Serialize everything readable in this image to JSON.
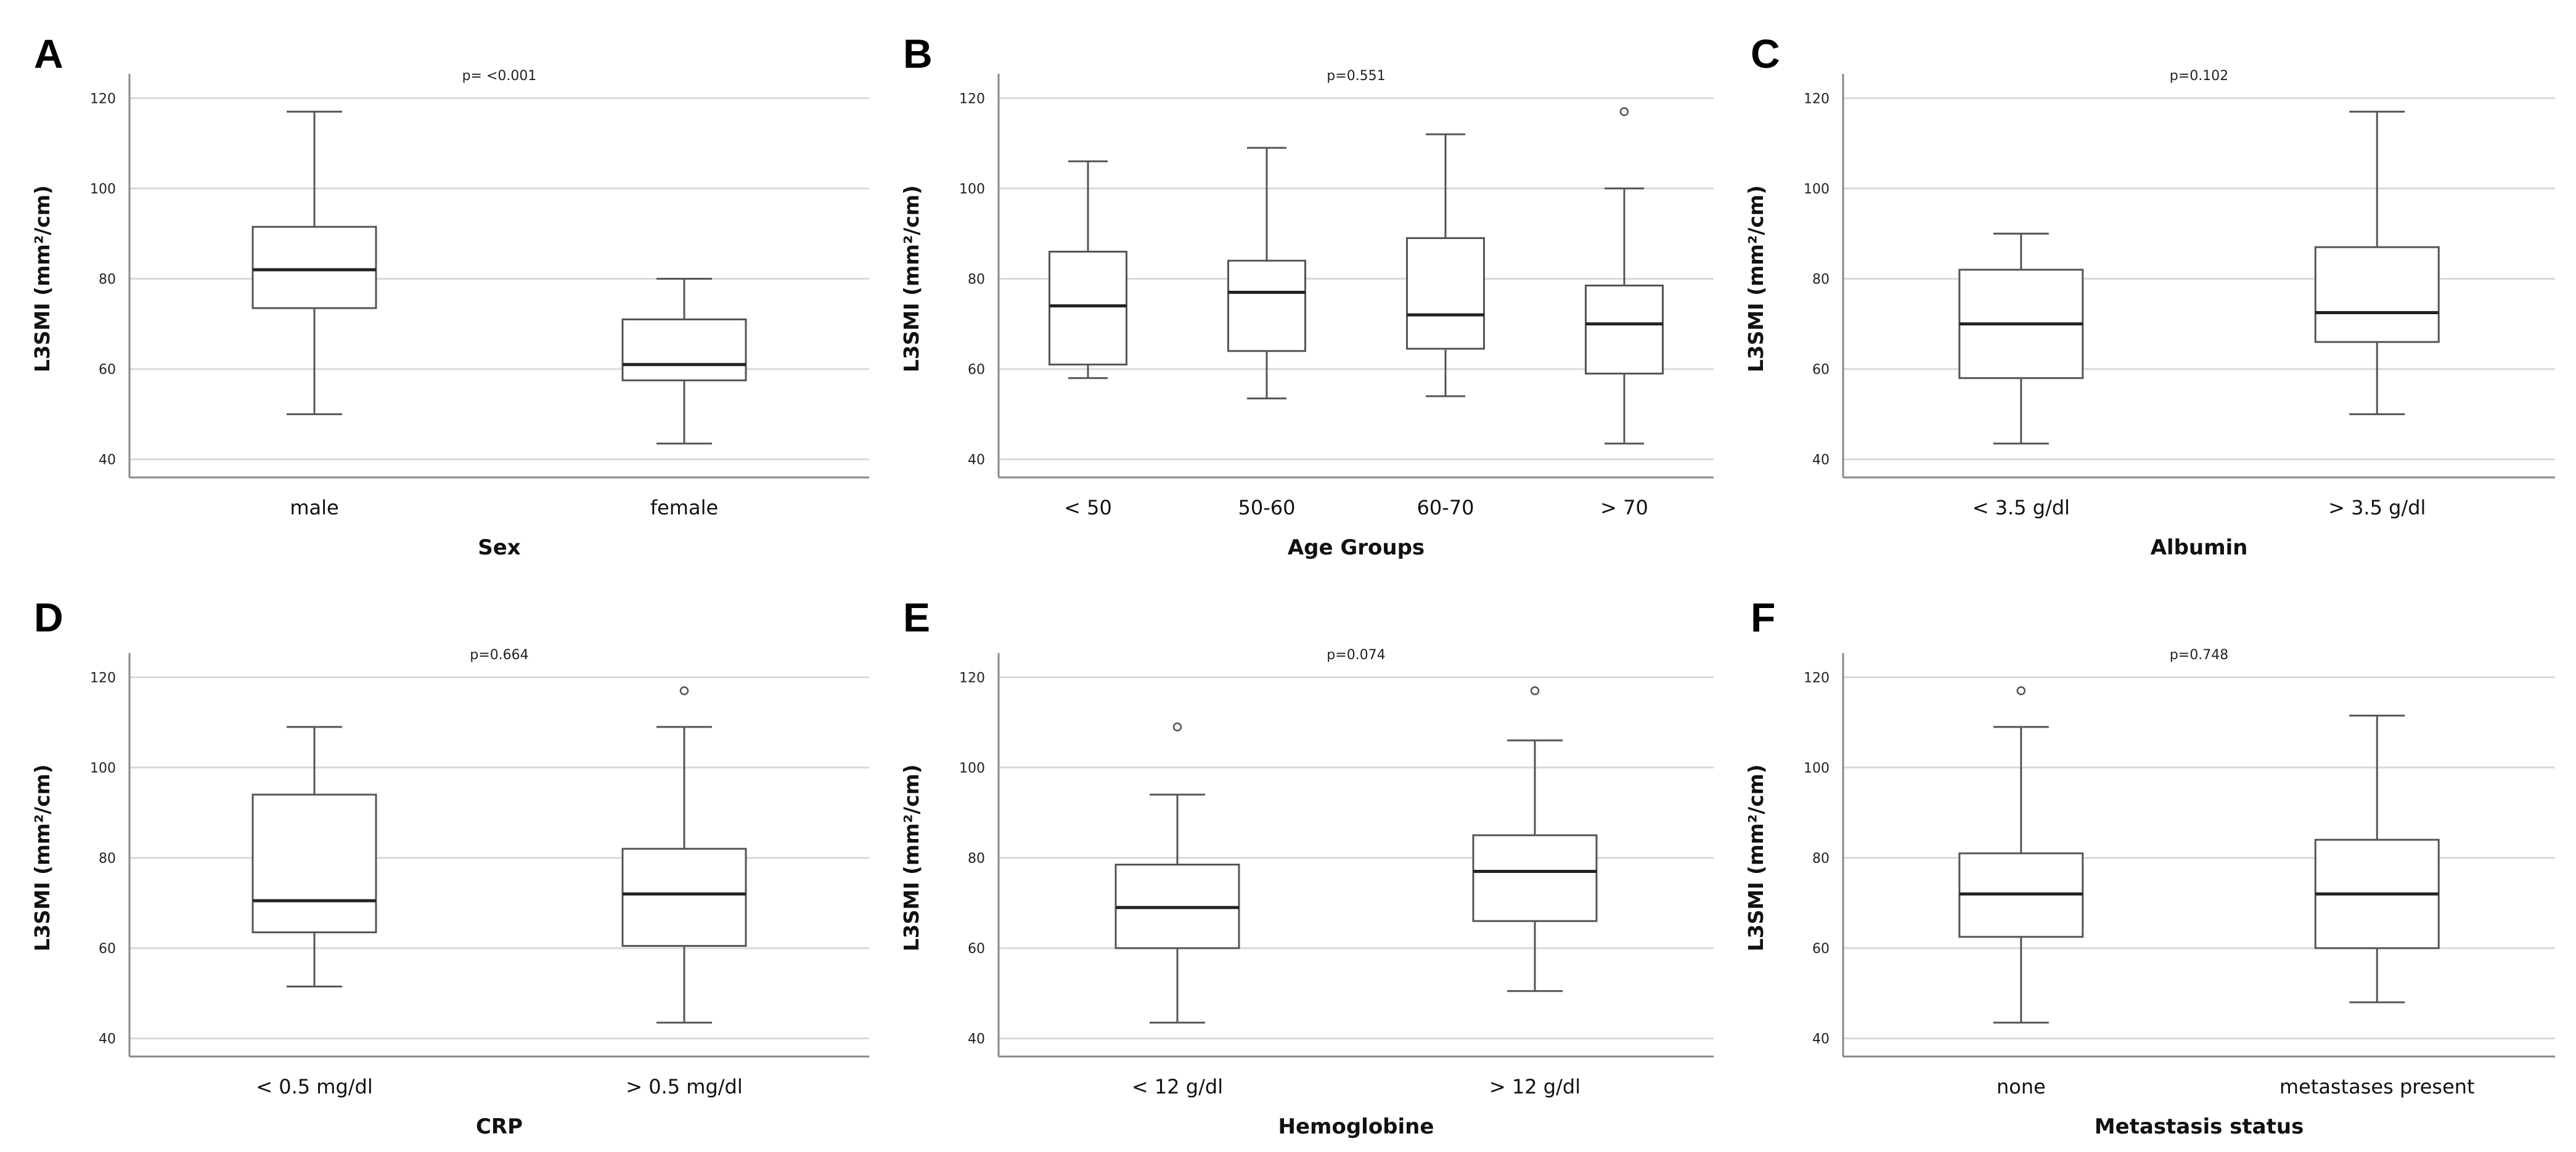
{
  "chart_data": [
    {
      "panel": "A",
      "type": "box",
      "pvalue": "p= <0.001",
      "xlabel": "Sex",
      "ylabel": "L3SMI (mm²/cm)",
      "ylim": [
        36,
        124
      ],
      "yticks": [
        40,
        60,
        80,
        100,
        120
      ],
      "categories": [
        "male",
        "female"
      ],
      "boxes": [
        {
          "min": 50,
          "q1": 73.5,
          "median": 82,
          "q3": 91.5,
          "max": 117,
          "outliers": []
        },
        {
          "min": 43.5,
          "q1": 57.5,
          "median": 61,
          "q3": 71,
          "max": 80,
          "outliers": []
        }
      ]
    },
    {
      "panel": "B",
      "type": "box",
      "pvalue": "p=0.551",
      "xlabel": "Age Groups",
      "ylabel": "L3SMI (mm²/cm)",
      "ylim": [
        36,
        124
      ],
      "yticks": [
        40,
        60,
        80,
        100,
        120
      ],
      "categories": [
        "< 50",
        "50-60",
        "60-70",
        "> 70"
      ],
      "boxes": [
        {
          "min": 58,
          "q1": 61,
          "median": 74,
          "q3": 86,
          "max": 106,
          "outliers": []
        },
        {
          "min": 53.5,
          "q1": 64,
          "median": 77,
          "q3": 84,
          "max": 109,
          "outliers": []
        },
        {
          "min": 54,
          "q1": 64.5,
          "median": 72,
          "q3": 89,
          "max": 112,
          "outliers": []
        },
        {
          "min": 43.5,
          "q1": 59,
          "median": 70,
          "q3": 78.5,
          "max": 100,
          "outliers": [
            117
          ]
        }
      ]
    },
    {
      "panel": "C",
      "type": "box",
      "pvalue": "p=0.102",
      "xlabel": "Albumin",
      "ylabel": "L3SMI (mm²/cm)",
      "ylim": [
        36,
        124
      ],
      "yticks": [
        40,
        60,
        80,
        100,
        120
      ],
      "categories": [
        "< 3.5 g/dl",
        "> 3.5 g/dl"
      ],
      "boxes": [
        {
          "min": 43.5,
          "q1": 58,
          "median": 70,
          "q3": 82,
          "max": 90,
          "outliers": []
        },
        {
          "min": 50,
          "q1": 66,
          "median": 72.5,
          "q3": 87,
          "max": 117,
          "outliers": []
        }
      ]
    },
    {
      "panel": "D",
      "type": "box",
      "pvalue": "p=0.664",
      "xlabel": "CRP",
      "ylabel": "L3SMI (mm²/cm)",
      "ylim": [
        36,
        124
      ],
      "yticks": [
        40,
        60,
        80,
        100,
        120
      ],
      "categories": [
        "< 0.5 mg/dl",
        "> 0.5 mg/dl"
      ],
      "boxes": [
        {
          "min": 51.5,
          "q1": 63.5,
          "median": 70.5,
          "q3": 94,
          "max": 109,
          "outliers": []
        },
        {
          "min": 43.5,
          "q1": 60.5,
          "median": 72,
          "q3": 82,
          "max": 109,
          "outliers": [
            117
          ]
        }
      ]
    },
    {
      "panel": "E",
      "type": "box",
      "pvalue": "p=0.074",
      "xlabel": "Hemoglobine",
      "ylabel": "L3SMI (mm²/cm)",
      "ylim": [
        36,
        124
      ],
      "yticks": [
        40,
        60,
        80,
        100,
        120
      ],
      "categories": [
        "< 12 g/dl",
        "> 12 g/dl"
      ],
      "boxes": [
        {
          "min": 43.5,
          "q1": 60,
          "median": 69,
          "q3": 78.5,
          "max": 94,
          "outliers": [
            109
          ]
        },
        {
          "min": 50.5,
          "q1": 66,
          "median": 77,
          "q3": 85,
          "max": 106,
          "outliers": [
            117
          ]
        }
      ]
    },
    {
      "panel": "F",
      "type": "box",
      "pvalue": "p=0.748",
      "xlabel": "Metastasis status",
      "ylabel": "L3SMI (mm²/cm)",
      "ylim": [
        36,
        124
      ],
      "yticks": [
        40,
        60,
        80,
        100,
        120
      ],
      "categories": [
        "none",
        "metastases present"
      ],
      "boxes": [
        {
          "min": 43.5,
          "q1": 62.5,
          "median": 72,
          "q3": 81,
          "max": 109,
          "outliers": [
            117
          ]
        },
        {
          "min": 48,
          "q1": 60,
          "median": 72,
          "q3": 84,
          "max": 111.5,
          "outliers": []
        }
      ]
    }
  ],
  "colors": {
    "box_stroke": "#555555",
    "median": "#222222",
    "grid": "#d9d9d9",
    "axis": "#888888"
  }
}
